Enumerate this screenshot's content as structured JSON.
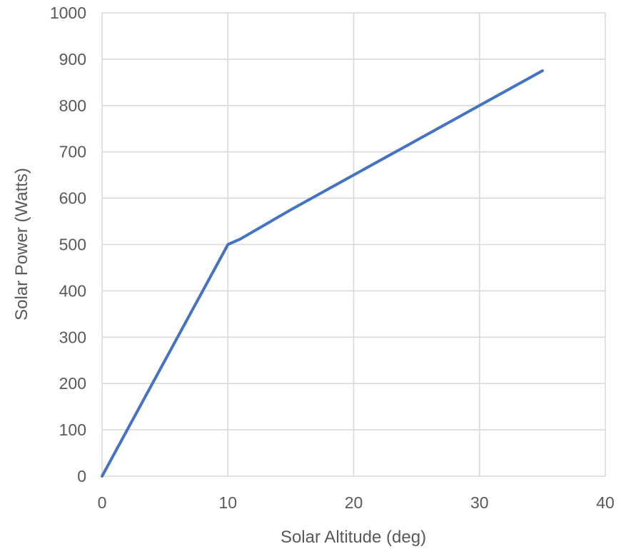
{
  "chart_data": {
    "type": "line",
    "title": "",
    "xlabel": "Solar Altitude (deg)",
    "ylabel": "Solar Power (Watts)",
    "xlim": [
      0,
      40
    ],
    "ylim": [
      0,
      1000
    ],
    "x_ticks": [
      0,
      10,
      20,
      30,
      40
    ],
    "y_ticks": [
      0,
      100,
      200,
      300,
      400,
      500,
      600,
      700,
      800,
      900,
      1000
    ],
    "grid": true,
    "legend": "none",
    "series": [
      {
        "color": "#4472c4",
        "x": [
          0,
          10,
          11,
          15,
          20,
          25,
          30,
          35
        ],
        "y": [
          0,
          500,
          512,
          575,
          650,
          725,
          800,
          875
        ]
      }
    ]
  }
}
